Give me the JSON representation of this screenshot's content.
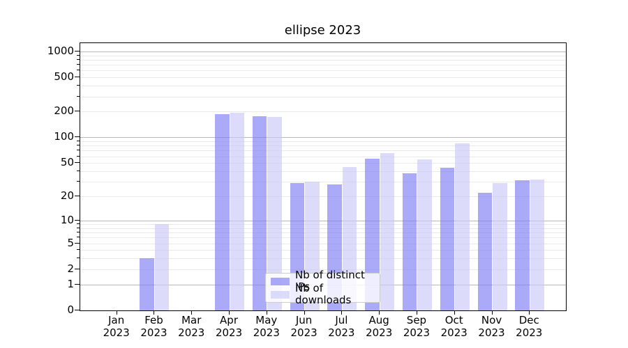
{
  "chart_data": {
    "type": "bar",
    "title": "ellipse 2023",
    "y_scale": "log1p",
    "ylim": [
      0,
      1250
    ],
    "grid": "both",
    "legend_position": "lower center",
    "categories": [
      "Jan 2023",
      "Feb 2023",
      "Mar 2023",
      "Apr 2023",
      "May 2023",
      "Jun 2023",
      "Jul 2023",
      "Aug 2023",
      "Sep 2023",
      "Oct 2023",
      "Nov 2023",
      "Dec 2023"
    ],
    "x_tick_line1": [
      "Jan",
      "Feb",
      "Mar",
      "Apr",
      "May",
      "Jun",
      "Jul",
      "Aug",
      "Sep",
      "Oct",
      "Nov",
      "Dec"
    ],
    "x_tick_line2": "2023",
    "y_ticks": [
      0,
      1,
      2,
      5,
      10,
      20,
      50,
      100,
      200,
      500,
      1000
    ],
    "series": [
      {
        "name": "Nb of distinct IPs",
        "color": "rgba(124,124,246,0.65)",
        "values": [
          0,
          3,
          0,
          187,
          178,
          29,
          28,
          56,
          38,
          44,
          22,
          31
        ]
      },
      {
        "name": "Nb of downloads",
        "color": "rgba(201,201,247,0.65)",
        "values": [
          0,
          9,
          0,
          194,
          175,
          30,
          45,
          65,
          55,
          85,
          29,
          32
        ]
      }
    ],
    "colors": {
      "axis": "#000000",
      "grid_major": "#b7b7b7",
      "grid_minor": "#e9e9e9",
      "background": "#ffffff",
      "text": "#000000"
    }
  }
}
